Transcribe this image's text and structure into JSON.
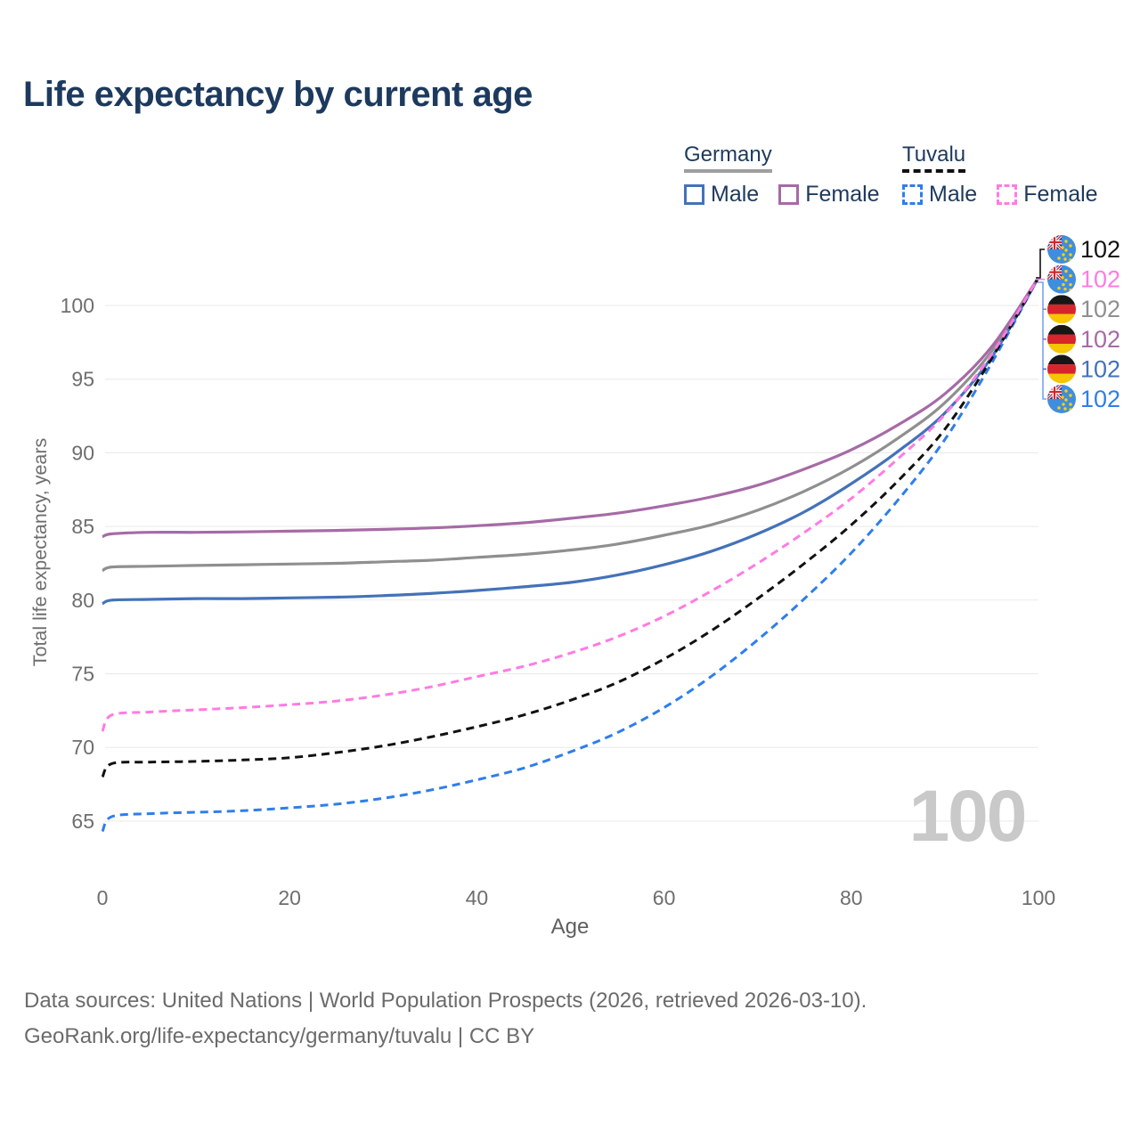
{
  "title": "Life expectancy by current age",
  "legend": {
    "groups": [
      {
        "name": "Germany",
        "underline": "solid",
        "underline_color": "#9e9e9e",
        "items": [
          {
            "label": "Male",
            "color": "#4472b8",
            "dashed": false
          },
          {
            "label": "Female",
            "color": "#a66aa6",
            "dashed": false
          }
        ]
      },
      {
        "name": "Tuvalu",
        "underline": "dashed",
        "underline_color": "#111111",
        "items": [
          {
            "label": "Male",
            "color": "#2f7ee9",
            "dashed": true
          },
          {
            "label": "Female",
            "color": "#ff7be3",
            "dashed": true
          }
        ]
      }
    ]
  },
  "axes": {
    "x_label": "Age",
    "y_label": "Total life expectancy, years",
    "x_ticks": [
      "0",
      "20",
      "40",
      "60",
      "80",
      "100"
    ],
    "y_ticks": [
      "65",
      "70",
      "75",
      "80",
      "85",
      "90",
      "95",
      "100"
    ]
  },
  "watermark": "100",
  "footer": {
    "line1": "Data sources: United Nations | World Population Prospects (2026, retrieved 2026-03-10).",
    "line2": "GeoRank.org/life-expectancy/germany/tuvalu | CC BY"
  },
  "chart_data": {
    "type": "line",
    "title": "Life expectancy by current age",
    "xlabel": "Age",
    "ylabel": "Total life expectancy, years",
    "xlim": [
      0,
      100
    ],
    "ylim": [
      63.5,
      103
    ],
    "grid": "horizontal-only",
    "legend_position": "top-right",
    "x": [
      0,
      1,
      5,
      10,
      15,
      20,
      25,
      30,
      35,
      40,
      45,
      50,
      55,
      60,
      65,
      70,
      75,
      80,
      85,
      90,
      95,
      100
    ],
    "series": [
      {
        "id": "germany-total",
        "name": "Germany (both sexes)",
        "country": "Germany",
        "sex": "Both",
        "color": "#8f8f8f",
        "dashed": false,
        "values": [
          82.0,
          82.25,
          82.3,
          82.35,
          82.4,
          82.45,
          82.5,
          82.6,
          82.7,
          82.9,
          83.1,
          83.4,
          83.8,
          84.4,
          85.1,
          86.1,
          87.4,
          89.0,
          91.0,
          93.4,
          96.9,
          101.9
        ]
      },
      {
        "id": "germany-male",
        "name": "Germany Male",
        "country": "Germany",
        "sex": "Male",
        "color": "#4472b8",
        "dashed": false,
        "values": [
          79.75,
          80.0,
          80.05,
          80.1,
          80.1,
          80.15,
          80.2,
          80.3,
          80.45,
          80.65,
          80.9,
          81.2,
          81.7,
          82.4,
          83.3,
          84.5,
          86.0,
          87.9,
          90.1,
          92.7,
          96.5,
          101.9
        ]
      },
      {
        "id": "germany-female",
        "name": "Germany Female",
        "country": "Germany",
        "sex": "Female",
        "color": "#a66aa6",
        "dashed": false,
        "values": [
          84.3,
          84.5,
          84.6,
          84.6,
          84.63,
          84.68,
          84.73,
          84.8,
          84.9,
          85.05,
          85.25,
          85.55,
          85.9,
          86.4,
          87.0,
          87.8,
          88.9,
          90.2,
          91.9,
          94.0,
          97.2,
          101.9
        ]
      },
      {
        "id": "tuvalu-male",
        "name": "Tuvalu Male",
        "country": "Tuvalu",
        "sex": "Male",
        "color": "#2f7ee9",
        "dashed": true,
        "values": [
          64.3,
          65.3,
          65.5,
          65.6,
          65.7,
          65.9,
          66.15,
          66.55,
          67.1,
          67.8,
          68.6,
          69.7,
          71.0,
          72.7,
          74.8,
          77.3,
          80.1,
          83.2,
          86.8,
          90.9,
          96.1,
          101.9
        ]
      },
      {
        "id": "tuvalu-total",
        "name": "Tuvalu (both sexes)",
        "country": "Tuvalu",
        "sex": "Both",
        "color": "#111111",
        "dashed": true,
        "values": [
          68.0,
          68.9,
          69.0,
          69.05,
          69.15,
          69.3,
          69.65,
          70.1,
          70.7,
          71.4,
          72.2,
          73.2,
          74.4,
          76.0,
          77.9,
          80.1,
          82.5,
          85.1,
          88.1,
          91.6,
          96.4,
          101.9
        ]
      },
      {
        "id": "tuvalu-female",
        "name": "Tuvalu Female",
        "country": "Tuvalu",
        "sex": "Female",
        "color": "#ff7be3",
        "dashed": true,
        "values": [
          71.1,
          72.2,
          72.4,
          72.55,
          72.7,
          72.9,
          73.15,
          73.55,
          74.1,
          74.8,
          75.5,
          76.4,
          77.5,
          78.9,
          80.6,
          82.5,
          84.6,
          86.9,
          89.6,
          92.6,
          96.7,
          101.9
        ]
      }
    ],
    "end_labels_top_to_bottom": [
      {
        "series": "tuvalu-total",
        "flag": "tuvalu",
        "label": "102",
        "color": "#111111"
      },
      {
        "series": "tuvalu-female",
        "flag": "tuvalu",
        "label": "102",
        "color": "#ff7be3"
      },
      {
        "series": "germany-total",
        "flag": "germany",
        "label": "102",
        "color": "#8f8f8f"
      },
      {
        "series": "germany-female",
        "flag": "germany",
        "label": "102",
        "color": "#a66aa6"
      },
      {
        "series": "germany-male",
        "flag": "germany",
        "label": "102",
        "color": "#4472b8"
      },
      {
        "series": "tuvalu-male",
        "flag": "tuvalu",
        "label": "102",
        "color": "#2f7ee9"
      }
    ],
    "connector_color": "#7aa0f4",
    "colors": {
      "title_text": "#1d3a5e",
      "tick_text": "#6e6e6e",
      "axis_title_text": "#5f5f5f",
      "gridline": "#e9e9e9",
      "watermark": "#c9c9c9",
      "footer_text": "#6b6b6b"
    }
  }
}
